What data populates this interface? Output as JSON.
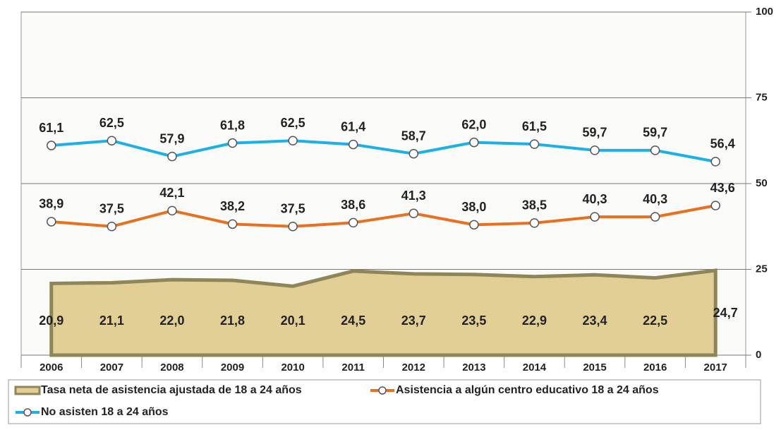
{
  "chart_data": {
    "type": "line",
    "categories": [
      "2006",
      "2007",
      "2008",
      "2009",
      "2010",
      "2011",
      "2012",
      "2013",
      "2014",
      "2015",
      "2016",
      "2017"
    ],
    "ylim": [
      0,
      100
    ],
    "yticks": [
      0,
      25,
      50,
      75,
      100
    ],
    "grid": true,
    "legend": "bottom",
    "series": [
      {
        "name": "Tasa neta de asistencia ajustada de 18 a 24 años",
        "type": "area",
        "color": "#e2cf96",
        "edge": "#8e8658",
        "values": [
          20.9,
          21.1,
          22.0,
          21.8,
          20.1,
          24.5,
          23.7,
          23.5,
          22.9,
          23.4,
          22.5,
          24.7
        ],
        "value_labels": [
          "20,9",
          "21,1",
          "22,0",
          "21,8",
          "20,1",
          "24,5",
          "23,7",
          "23,5",
          "22,9",
          "23,4",
          "22,5",
          "24,7"
        ]
      },
      {
        "name": "Asistencia a algún centro educativo 18 a 24 años",
        "type": "line",
        "color": "#e8701e",
        "values": [
          38.9,
          37.5,
          42.1,
          38.2,
          37.5,
          38.6,
          41.3,
          38.0,
          38.5,
          40.3,
          40.3,
          43.6
        ],
        "value_labels": [
          "38,9",
          "37,5",
          "42,1",
          "38,2",
          "37,5",
          "38,6",
          "41,3",
          "38,0",
          "38,5",
          "40,3",
          "40,3",
          "43,6"
        ]
      },
      {
        "name": "No asisten 18 a 24 años",
        "type": "line",
        "color": "#1cb1e6",
        "values": [
          61.1,
          62.5,
          57.9,
          61.8,
          62.5,
          61.4,
          58.7,
          62.0,
          61.5,
          59.7,
          59.7,
          56.4
        ],
        "value_labels": [
          "61,1",
          "62,5",
          "57,9",
          "61,8",
          "62,5",
          "61,4",
          "58,7",
          "62,0",
          "61,5",
          "59,7",
          "59,7",
          "56,4"
        ]
      }
    ]
  }
}
